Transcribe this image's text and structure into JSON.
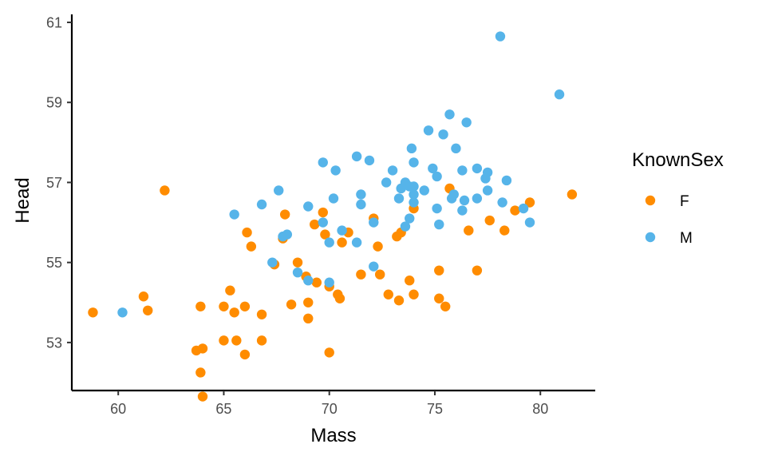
{
  "chart_data": {
    "type": "scatter",
    "title": "",
    "xlabel": "Mass",
    "ylabel": "Head",
    "xlim": [
      57.8,
      82.6
    ],
    "ylim": [
      51.8,
      61.2
    ],
    "x_ticks": [
      60,
      65,
      70,
      75,
      80
    ],
    "y_ticks": [
      53,
      55,
      57,
      59,
      61
    ],
    "grid": false,
    "legend": {
      "title": "KnownSex",
      "placement": "right"
    },
    "series": [
      {
        "name": "F",
        "color": "#FF8C00",
        "points": [
          [
            58.8,
            53.75
          ],
          [
            61.2,
            54.15
          ],
          [
            61.4,
            53.8
          ],
          [
            62.2,
            56.8
          ],
          [
            63.7,
            52.8
          ],
          [
            63.9,
            53.9
          ],
          [
            63.9,
            52.25
          ],
          [
            64.0,
            52.85
          ],
          [
            64.0,
            51.65
          ],
          [
            65.0,
            53.9
          ],
          [
            65.0,
            53.05
          ],
          [
            65.3,
            54.3
          ],
          [
            65.5,
            53.75
          ],
          [
            65.6,
            53.05
          ],
          [
            66.0,
            53.9
          ],
          [
            66.0,
            52.7
          ],
          [
            66.1,
            55.75
          ],
          [
            66.3,
            55.4
          ],
          [
            66.8,
            53.05
          ],
          [
            66.8,
            53.7
          ],
          [
            67.4,
            54.95
          ],
          [
            67.8,
            55.6
          ],
          [
            67.9,
            56.2
          ],
          [
            68.2,
            53.95
          ],
          [
            68.5,
            55.0
          ],
          [
            68.9,
            54.65
          ],
          [
            69.0,
            54.0
          ],
          [
            69.0,
            53.6
          ],
          [
            69.3,
            55.95
          ],
          [
            69.4,
            54.5
          ],
          [
            69.7,
            56.25
          ],
          [
            69.8,
            55.7
          ],
          [
            70.0,
            54.4
          ],
          [
            70.0,
            52.75
          ],
          [
            70.4,
            54.2
          ],
          [
            70.5,
            54.1
          ],
          [
            70.6,
            55.5
          ],
          [
            70.9,
            55.75
          ],
          [
            71.5,
            54.7
          ],
          [
            72.1,
            56.1
          ],
          [
            72.3,
            55.4
          ],
          [
            72.4,
            54.7
          ],
          [
            72.8,
            54.2
          ],
          [
            73.2,
            55.65
          ],
          [
            73.3,
            54.05
          ],
          [
            73.4,
            55.75
          ],
          [
            73.8,
            54.55
          ],
          [
            74.0,
            56.35
          ],
          [
            74.0,
            54.2
          ],
          [
            75.2,
            54.8
          ],
          [
            75.2,
            54.1
          ],
          [
            75.5,
            53.9
          ],
          [
            75.7,
            56.85
          ],
          [
            76.6,
            55.8
          ],
          [
            77.0,
            54.8
          ],
          [
            77.6,
            56.05
          ],
          [
            78.3,
            55.8
          ],
          [
            78.8,
            56.3
          ],
          [
            79.5,
            56.5
          ],
          [
            81.5,
            56.7
          ]
        ]
      },
      {
        "name": "M",
        "color": "#56B4E9",
        "points": [
          [
            60.2,
            53.75
          ],
          [
            65.5,
            56.2
          ],
          [
            66.8,
            56.45
          ],
          [
            67.3,
            55.0
          ],
          [
            67.6,
            56.8
          ],
          [
            67.8,
            55.65
          ],
          [
            68.0,
            55.7
          ],
          [
            68.5,
            54.75
          ],
          [
            69.0,
            54.55
          ],
          [
            69.0,
            56.4
          ],
          [
            69.7,
            56.0
          ],
          [
            69.7,
            57.5
          ],
          [
            70.0,
            55.5
          ],
          [
            70.0,
            54.5
          ],
          [
            70.2,
            56.6
          ],
          [
            70.3,
            57.3
          ],
          [
            70.6,
            55.8
          ],
          [
            71.3,
            55.5
          ],
          [
            71.3,
            57.65
          ],
          [
            71.5,
            56.7
          ],
          [
            71.5,
            56.45
          ],
          [
            71.9,
            57.55
          ],
          [
            72.1,
            56.0
          ],
          [
            72.1,
            54.9
          ],
          [
            72.7,
            57.0
          ],
          [
            73.0,
            57.3
          ],
          [
            73.3,
            56.6
          ],
          [
            73.4,
            56.85
          ],
          [
            73.6,
            55.9
          ],
          [
            73.6,
            57.0
          ],
          [
            73.8,
            56.1
          ],
          [
            73.8,
            56.9
          ],
          [
            73.9,
            57.85
          ],
          [
            74.0,
            56.9
          ],
          [
            74.0,
            56.7
          ],
          [
            74.0,
            56.5
          ],
          [
            74.0,
            57.5
          ],
          [
            74.5,
            56.8
          ],
          [
            74.7,
            58.3
          ],
          [
            74.9,
            57.35
          ],
          [
            75.1,
            57.15
          ],
          [
            75.1,
            56.35
          ],
          [
            75.2,
            55.95
          ],
          [
            75.4,
            58.2
          ],
          [
            75.7,
            58.7
          ],
          [
            75.8,
            56.6
          ],
          [
            75.9,
            56.7
          ],
          [
            76.0,
            57.85
          ],
          [
            76.3,
            57.3
          ],
          [
            76.3,
            56.3
          ],
          [
            76.4,
            56.55
          ],
          [
            76.5,
            58.5
          ],
          [
            77.0,
            56.6
          ],
          [
            77.0,
            57.35
          ],
          [
            77.4,
            57.1
          ],
          [
            77.5,
            56.8
          ],
          [
            77.5,
            57.25
          ],
          [
            78.1,
            60.65
          ],
          [
            78.2,
            56.5
          ],
          [
            78.4,
            57.05
          ],
          [
            79.2,
            56.35
          ],
          [
            79.5,
            56.0
          ],
          [
            80.9,
            59.2
          ]
        ]
      }
    ]
  }
}
